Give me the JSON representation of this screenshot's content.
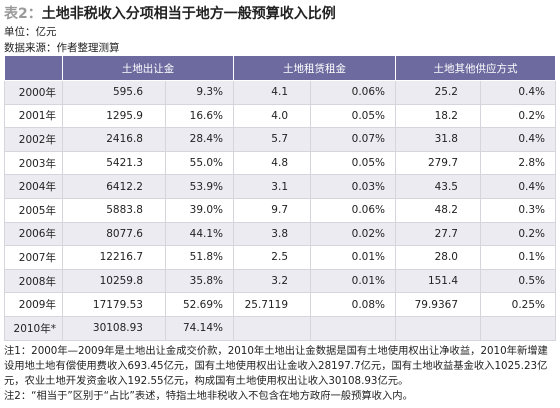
{
  "header": {
    "label": "表2：",
    "title": "土地非税收入分项相当于地方一般预算收入比例",
    "unit": "单位：亿元",
    "source": "数据来源：作者整理测算"
  },
  "table": {
    "columns": [
      "土地出让金",
      "土地租赁租金",
      "土地其他供应方式"
    ],
    "rows": [
      [
        "2000年",
        "595.6",
        "9.3%",
        "4.1",
        "0.06%",
        "25.2",
        "0.4%"
      ],
      [
        "2001年",
        "1295.9",
        "16.6%",
        "4.0",
        "0.05%",
        "18.2",
        "0.2%"
      ],
      [
        "2002年",
        "2416.8",
        "28.4%",
        "5.7",
        "0.07%",
        "31.8",
        "0.4%"
      ],
      [
        "2003年",
        "5421.3",
        "55.0%",
        "4.8",
        "0.05%",
        "279.7",
        "2.8%"
      ],
      [
        "2004年",
        "6412.2",
        "53.9%",
        "3.1",
        "0.03%",
        "43.5",
        "0.4%"
      ],
      [
        "2005年",
        "5883.8",
        "39.0%",
        "9.7",
        "0.06%",
        "48.2",
        "0.3%"
      ],
      [
        "2006年",
        "8077.6",
        "44.1%",
        "3.8",
        "0.02%",
        "27.7",
        "0.2%"
      ],
      [
        "2007年",
        "12216.7",
        "51.8%",
        "2.5",
        "0.01%",
        "28.0",
        "0.1%"
      ],
      [
        "2008年",
        "10259.8",
        "35.8%",
        "3.2",
        "0.01%",
        "151.4",
        "0.5%"
      ],
      [
        "2009年",
        "17179.53",
        "52.69%",
        "25.7119",
        "0.08%",
        "79.9367",
        "0.25%"
      ],
      [
        "2010年*",
        "30108.93",
        "74.14%"
      ]
    ]
  },
  "notes": [
    "注1：2000年—2009年是土地出让金成交价款，2010年土地出让金数据是国有土地使用权出让净收益，2010年新增建设用地土地有偿使用费收入693.45亿元，国有土地使用权出让金收入28197.7亿元，国有土地收益基金收入1025.23亿元，农业土地开发资金收入192.55亿元，构成国有土地使用权出让收入30108.93亿元。",
    "注2：“相当于”区别于“占比”表述，特指土地非税收入不包含在地方政府一般预算收入内。"
  ]
}
